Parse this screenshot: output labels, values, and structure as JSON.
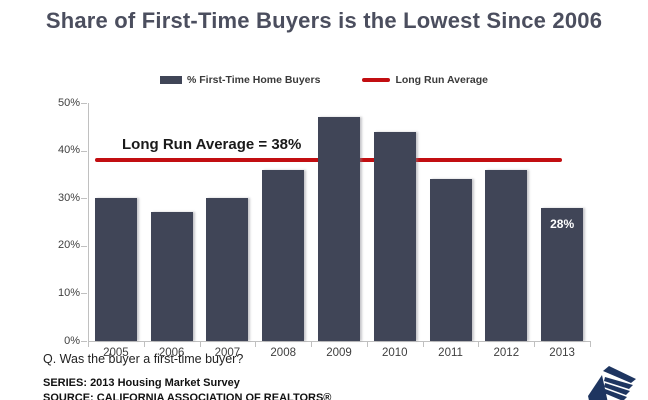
{
  "slide": {
    "title": "Share of First-Time Buyers is the Lowest Since 2006",
    "question": "Q. Was the buyer a first-time buyer?",
    "series_note": "SERIES: 2013 Housing Market Survey",
    "source_note": "SOURCE: CALIFORNIA ASSOCIATION OF REALTORS®"
  },
  "legend": {
    "bars_label": "% First-Time Home Buyers",
    "line_label": "Long Run Average"
  },
  "colors": {
    "bar": "#404557",
    "reference_line": "#C20E11",
    "title_text": "#4B4E5E",
    "axis_text": "#3F3F3F",
    "axis_line": "#C0C0C0",
    "data_label_text": "#FFFFFF",
    "logo_navy": "#1E3560"
  },
  "chart_data": {
    "type": "bar",
    "title": "Share of First-Time Buyers is the Lowest Since 2006",
    "series_name": "% First-Time Home Buyers",
    "categories": [
      "2005",
      "2006",
      "2007",
      "2008",
      "2009",
      "2010",
      "2011",
      "2012",
      "2013"
    ],
    "values": [
      30,
      27,
      30,
      36,
      47,
      44,
      34,
      36,
      28
    ],
    "xlabel": "",
    "ylabel": "",
    "ylim": [
      0,
      50
    ],
    "ytick_step": 10,
    "ytick_labels": [
      "0%",
      "10%",
      "20%",
      "30%",
      "40%",
      "50%"
    ],
    "grid": false,
    "legend_position": "top-center",
    "reference_line": {
      "value": 38,
      "label": "Long Run Average = 38%",
      "color": "#C20E11"
    },
    "data_labels": {
      "2013": "28%"
    }
  }
}
